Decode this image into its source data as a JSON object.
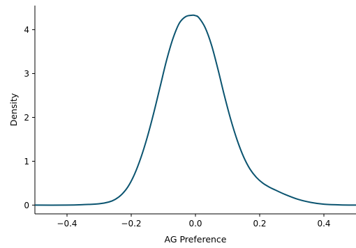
{
  "chart_data": {
    "type": "line",
    "title": "",
    "xlabel": "AG Preference",
    "ylabel": "Density",
    "xlim": [
      -0.5,
      0.5
    ],
    "ylim": [
      -0.2,
      4.55
    ],
    "x_ticks": [
      -0.4,
      -0.2,
      0.0,
      0.2,
      0.4
    ],
    "x_tick_labels": [
      "−0.4",
      "−0.2",
      "0.0",
      "0.2",
      "0.4"
    ],
    "y_ticks": [
      0,
      1,
      2,
      3,
      4
    ],
    "y_tick_labels": [
      "0",
      "1",
      "2",
      "3",
      "4"
    ],
    "grid": false,
    "series": [
      {
        "color": "#0b5470",
        "x": [
          -0.5,
          -0.4,
          -0.35,
          -0.3,
          -0.27,
          -0.25,
          -0.23,
          -0.21,
          -0.19,
          -0.17,
          -0.15,
          -0.13,
          -0.11,
          -0.09,
          -0.07,
          -0.05,
          -0.03,
          -0.01,
          0.0,
          0.01,
          0.03,
          0.05,
          0.07,
          0.09,
          0.11,
          0.13,
          0.15,
          0.17,
          0.19,
          0.21,
          0.23,
          0.25,
          0.28,
          0.32,
          0.36,
          0.4,
          0.45,
          0.5
        ],
        "y": [
          0.0,
          0.0,
          0.01,
          0.03,
          0.07,
          0.13,
          0.24,
          0.42,
          0.7,
          1.08,
          1.55,
          2.1,
          2.7,
          3.3,
          3.8,
          4.15,
          4.3,
          4.33,
          4.32,
          4.28,
          4.05,
          3.65,
          3.1,
          2.5,
          1.95,
          1.48,
          1.1,
          0.82,
          0.63,
          0.5,
          0.41,
          0.34,
          0.24,
          0.13,
          0.06,
          0.02,
          0.005,
          0.0
        ]
      }
    ]
  }
}
